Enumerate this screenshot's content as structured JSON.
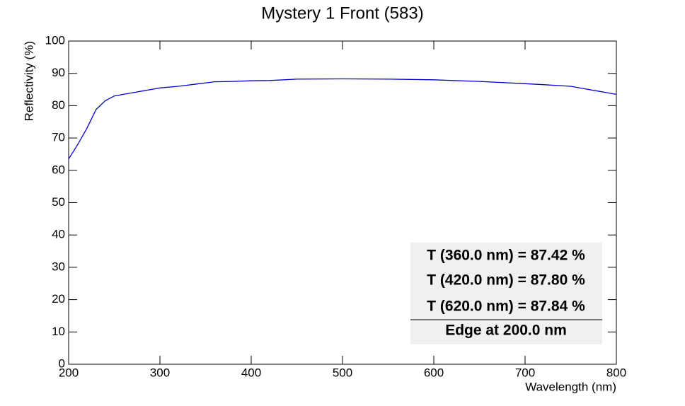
{
  "chart_data": {
    "type": "line",
    "title": "Mystery 1 Front (583)",
    "x_label": "Wavelength (nm)",
    "y_label": "Reflectivity (%)",
    "x": [
      200,
      210,
      220,
      230,
      240,
      250,
      260,
      270,
      280,
      290,
      300,
      320,
      340,
      360,
      380,
      400,
      420,
      450,
      500,
      550,
      600,
      620,
      650,
      700,
      720,
      750,
      770,
      780,
      790,
      800
    ],
    "series": [
      {
        "name": "Reflectivity",
        "color": "#0000cc",
        "values": [
          63.5,
          68,
          73,
          78.8,
          81.5,
          83,
          83.5,
          84,
          84.5,
          85,
          85.5,
          86,
          86.7,
          87.4,
          87.5,
          87.7,
          87.8,
          88.2,
          88.3,
          88.2,
          88,
          87.8,
          87.5,
          86.8,
          86.5,
          86,
          85,
          84.5,
          84,
          83.5
        ]
      }
    ],
    "xlim": [
      200,
      800
    ],
    "xticks": [
      200,
      300,
      400,
      500,
      600,
      700,
      800
    ],
    "ylim": [
      0,
      100
    ],
    "yticks": [
      0,
      10,
      20,
      30,
      40,
      50,
      60,
      70,
      80,
      90,
      100
    ],
    "annotations": [
      "T (360.0 nm) = 87.42 %",
      "T (420.0 nm) = 87.80 %",
      "T (620.0 nm) = 87.84 %",
      "Edge at 200.0 nm"
    ]
  }
}
